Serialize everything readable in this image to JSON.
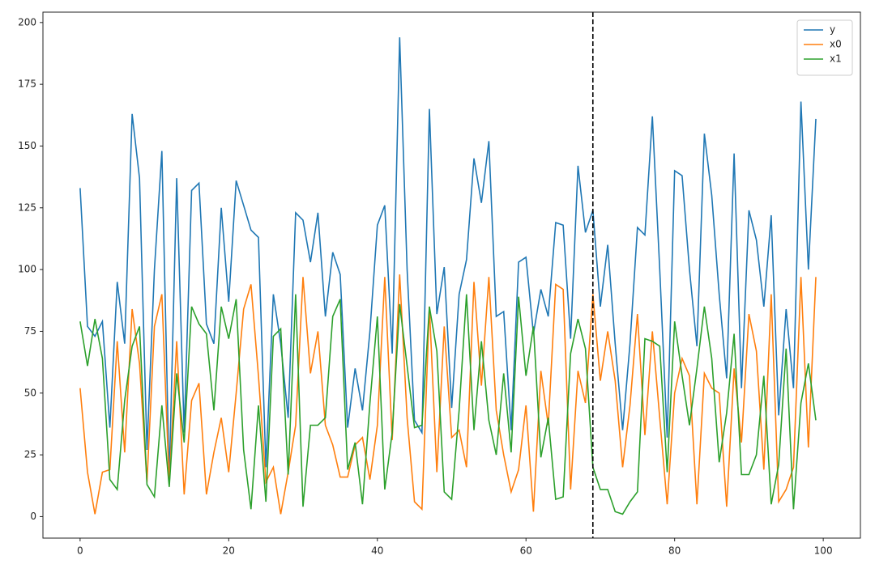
{
  "chart_data": {
    "type": "line",
    "x": [
      0,
      1,
      2,
      3,
      4,
      5,
      6,
      7,
      8,
      9,
      10,
      11,
      12,
      13,
      14,
      15,
      16,
      17,
      18,
      19,
      20,
      21,
      22,
      23,
      24,
      25,
      26,
      27,
      28,
      29,
      30,
      31,
      32,
      33,
      34,
      35,
      36,
      37,
      38,
      39,
      40,
      41,
      42,
      43,
      44,
      45,
      46,
      47,
      48,
      49,
      50,
      51,
      52,
      53,
      54,
      55,
      56,
      57,
      58,
      59,
      60,
      61,
      62,
      63,
      64,
      65,
      66,
      67,
      68,
      69,
      70,
      71,
      72,
      73,
      74,
      75,
      76,
      77,
      78,
      79,
      80,
      81,
      82,
      83,
      84,
      85,
      86,
      87,
      88,
      89,
      90,
      91,
      92,
      93,
      94,
      95,
      96,
      97,
      98,
      99
    ],
    "series": [
      {
        "name": "y",
        "color": "#1f77b4",
        "values": [
          133,
          77,
          73,
          79,
          36,
          95,
          70,
          163,
          137,
          27,
          100,
          148,
          15,
          137,
          34,
          132,
          135,
          78,
          70,
          125,
          87,
          136,
          126,
          116,
          113,
          20,
          90,
          70,
          40,
          123,
          120,
          103,
          123,
          81,
          107,
          98,
          36,
          60,
          43,
          75,
          118,
          126,
          66,
          194,
          100,
          39,
          34,
          165,
          82,
          101,
          44,
          90,
          104,
          145,
          127,
          152,
          81,
          83,
          35,
          103,
          105,
          74,
          92,
          81,
          119,
          118,
          72,
          142,
          115,
          124,
          85,
          110,
          70,
          35,
          70,
          117,
          114,
          162,
          100,
          32,
          140,
          138,
          100,
          69,
          155,
          130,
          90,
          56,
          147,
          52,
          124,
          112,
          85,
          122,
          41,
          84,
          52,
          168,
          100,
          161
        ]
      },
      {
        "name": "x0",
        "color": "#ff7f0e",
        "values": [
          52,
          18,
          1,
          18,
          19,
          71,
          26,
          84,
          62,
          14,
          77,
          90,
          13,
          71,
          9,
          47,
          54,
          9,
          26,
          40,
          18,
          50,
          84,
          94,
          57,
          14,
          20,
          1,
          18,
          37,
          97,
          58,
          75,
          37,
          29,
          16,
          16,
          29,
          32,
          15,
          37,
          97,
          31,
          98,
          40,
          6,
          3,
          85,
          18,
          77,
          32,
          35,
          20,
          95,
          53,
          97,
          43,
          25,
          10,
          19,
          45,
          2,
          59,
          37,
          94,
          92,
          11,
          59,
          46,
          90,
          55,
          75,
          55,
          20,
          45,
          82,
          33,
          75,
          40,
          5,
          50,
          64,
          57,
          5,
          58,
          52,
          50,
          4,
          60,
          30,
          82,
          67,
          19,
          90,
          6,
          11,
          20,
          97,
          28,
          97
        ]
      },
      {
        "name": "x1",
        "color": "#2ca02c",
        "values": [
          79,
          61,
          80,
          64,
          15,
          11,
          47,
          69,
          77,
          13,
          8,
          45,
          12,
          58,
          30,
          85,
          78,
          74,
          43,
          85,
          72,
          88,
          27,
          3,
          45,
          6,
          73,
          76,
          17,
          90,
          4,
          37,
          37,
          40,
          81,
          88,
          19,
          30,
          5,
          46,
          81,
          11,
          34,
          86,
          61,
          36,
          37,
          85,
          67,
          10,
          7,
          43,
          90,
          35,
          71,
          39,
          25,
          58,
          26,
          89,
          57,
          77,
          24,
          40,
          7,
          8,
          66,
          80,
          68,
          20,
          11,
          11,
          2,
          1,
          6,
          10,
          72,
          71,
          69,
          18,
          79,
          57,
          37,
          60,
          85,
          64,
          22,
          42,
          74,
          17,
          17,
          25,
          57,
          5,
          21,
          68,
          3,
          46,
          62,
          39
        ]
      }
    ],
    "xlim": [
      -5,
      105
    ],
    "xticks": [
      0,
      20,
      40,
      60,
      80,
      100
    ],
    "ylim": [
      -8.7,
      204.2
    ],
    "yticks": [
      0,
      25,
      50,
      75,
      100,
      125,
      150,
      175,
      200
    ],
    "vline": 69,
    "legend": "upper right"
  }
}
